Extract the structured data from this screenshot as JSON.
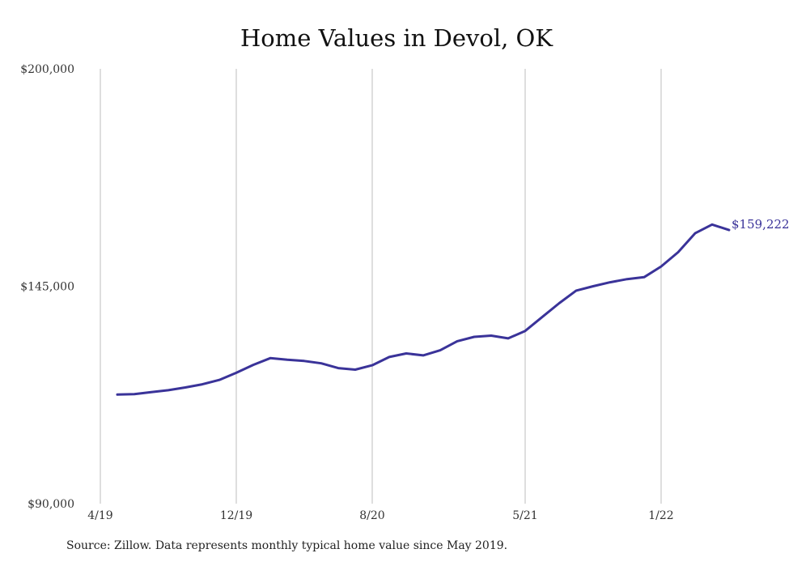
{
  "chart_data": {
    "type": "line",
    "title": "Home Values in Devol, OK",
    "xlabel": "",
    "ylabel": "",
    "x_tick_labels": [
      "4/19",
      "12/19",
      "8/20",
      "5/21",
      "1/22"
    ],
    "x_tick_months": [
      0,
      8,
      16,
      25,
      33
    ],
    "y_tick_labels": [
      "$90,000",
      "$145,000",
      "$200,000"
    ],
    "y_tick_values": [
      90000,
      145000,
      200000
    ],
    "ylim": [
      90000,
      200000
    ],
    "grid": "vertical",
    "line_color": "#3a3399",
    "end_label": "$159,222",
    "series": [
      {
        "x": [
          1,
          2,
          3,
          4,
          5,
          6,
          7,
          8,
          9,
          10,
          11,
          12,
          13,
          14,
          15,
          16,
          17,
          18,
          19,
          20,
          21,
          22,
          23,
          24,
          25,
          26,
          27,
          28,
          29,
          30,
          31,
          32,
          33,
          34,
          35,
          36,
          37
        ],
        "values": [
          117600,
          117700,
          118200,
          118700,
          119400,
          120200,
          121300,
          123100,
          125100,
          126800,
          126400,
          126100,
          125500,
          124300,
          123900,
          125000,
          127100,
          128000,
          127500,
          128800,
          131100,
          132200,
          132500,
          131800,
          133700,
          137200,
          140700,
          143900,
          145000,
          146000,
          146800,
          147300,
          150000,
          153600,
          158400,
          160600,
          159222
        ]
      }
    ]
  },
  "source_note": "Source: Zillow. Data represents monthly typical home value since May 2019."
}
